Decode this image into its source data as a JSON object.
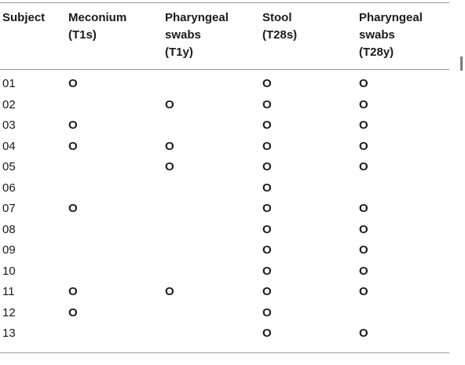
{
  "table": {
    "headers": [
      "Subject",
      "Meconium\n(T1s)",
      "Pharyngeal\nswabs\n(T1y)",
      "Stool\n(T28s)",
      "Pharyngeal\nswabs\n(T28y)"
    ],
    "rows": [
      {
        "subject": "01",
        "marks": [
          "O",
          "",
          "O",
          "O"
        ]
      },
      {
        "subject": "02",
        "marks": [
          "",
          "O",
          "O",
          "O"
        ]
      },
      {
        "subject": "03",
        "marks": [
          "O",
          "",
          "O",
          "O"
        ]
      },
      {
        "subject": "04",
        "marks": [
          "O",
          "O",
          "O",
          "O"
        ]
      },
      {
        "subject": "05",
        "marks": [
          "",
          "O",
          "O",
          "O"
        ]
      },
      {
        "subject": "06",
        "marks": [
          "",
          "",
          "O",
          ""
        ]
      },
      {
        "subject": "07",
        "marks": [
          "O",
          "",
          "O",
          "O"
        ]
      },
      {
        "subject": "08",
        "marks": [
          "",
          "",
          "O",
          "O"
        ]
      },
      {
        "subject": "09",
        "marks": [
          "",
          "",
          "O",
          "O"
        ]
      },
      {
        "subject": "10",
        "marks": [
          "",
          "",
          "O",
          "O"
        ]
      },
      {
        "subject": "11",
        "marks": [
          "O",
          "O",
          "O",
          "O"
        ]
      },
      {
        "subject": "12",
        "marks": [
          "O",
          "",
          "O",
          ""
        ]
      },
      {
        "subject": "13",
        "marks": [
          "",
          "",
          "O",
          "O"
        ]
      }
    ]
  }
}
